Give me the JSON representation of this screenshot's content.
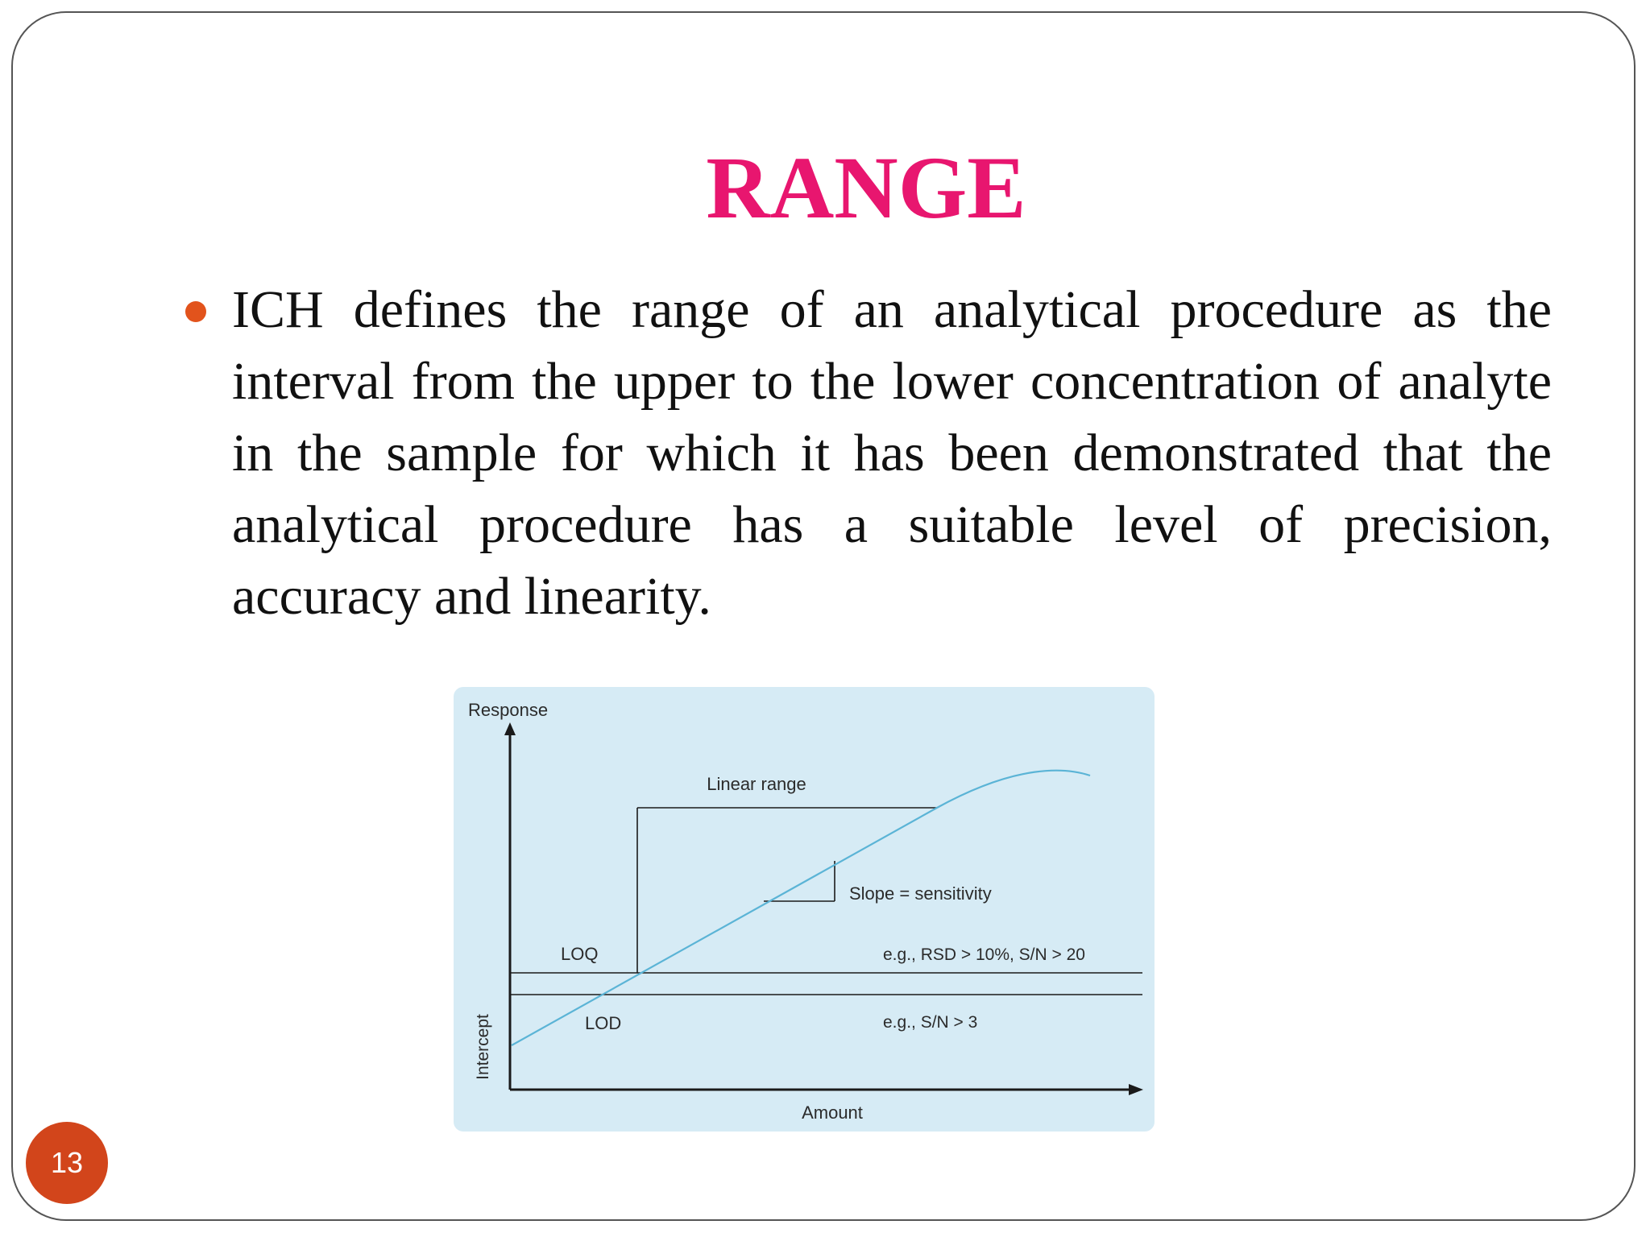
{
  "slide": {
    "title": "RANGE",
    "title_color": "#e8166f",
    "bullet_color": "#e2531c",
    "body": "ICH defines the range of an analytical procedure as the interval from the upper to the lower concentration of analyte in the sample for which it has been demonstrated that the analytical procedure has a suitable level of precision, accuracy and linearity.",
    "page_number": "13",
    "page_badge_color": "#d2451b"
  },
  "diagram": {
    "background_color": "#d6ebf5",
    "curve_color": "#5bb4d6",
    "labels": {
      "y_axis": "Response",
      "x_axis": "Amount",
      "intercept": "Intercept",
      "linear_range": "Linear range",
      "slope": "Slope = sensitivity",
      "loq": "LOQ",
      "loq_criteria": "e.g., RSD > 10%, S/N > 20",
      "lod": "LOD",
      "lod_criteria": "e.g., S/N > 3"
    }
  }
}
